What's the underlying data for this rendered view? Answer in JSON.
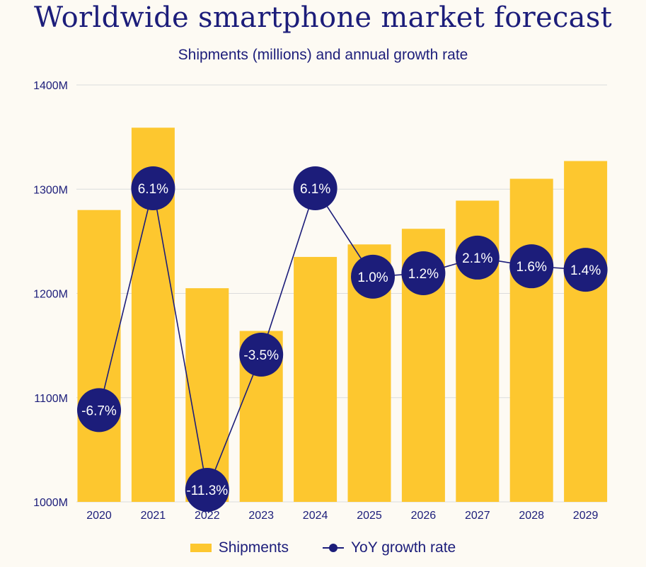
{
  "chart_data": {
    "type": "bar",
    "title": "Worldwide smartphone market forecast",
    "subtitle": "Shipments (millions) and annual growth rate",
    "categories": [
      "2020",
      "2021",
      "2022",
      "2023",
      "2024",
      "2025",
      "2026",
      "2027",
      "2028",
      "2029"
    ],
    "series": [
      {
        "name": "Shipments",
        "type": "bar",
        "values": [
          1280,
          1359,
          1205,
          1164,
          1235,
          1247,
          1262,
          1289,
          1310,
          1327
        ]
      },
      {
        "name": "YoY growth rate",
        "type": "line",
        "values": [
          -6.7,
          6.1,
          -11.3,
          -3.5,
          6.1,
          1.0,
          1.2,
          2.1,
          1.6,
          1.4
        ],
        "labels": [
          "-6.7%",
          "6.1%",
          "-11.3%",
          "-3.5%",
          "6.1%",
          "1.0%",
          "1.2%",
          "2.1%",
          "1.6%",
          "1.4%"
        ]
      }
    ],
    "ylim": [
      1000,
      1400
    ],
    "yticks": [
      1000,
      1100,
      1200,
      1300,
      1400
    ],
    "ytick_labels": [
      "1000M",
      "1100M",
      "1200M",
      "1300M",
      "1400M"
    ],
    "grid": true,
    "legend_position": "bottom",
    "colors": {
      "bar": "#fdc72f",
      "line": "#1c1d7a",
      "text": "#1c1d7a",
      "grid": "#dcdcdc",
      "background": "#fdfaf3"
    }
  }
}
